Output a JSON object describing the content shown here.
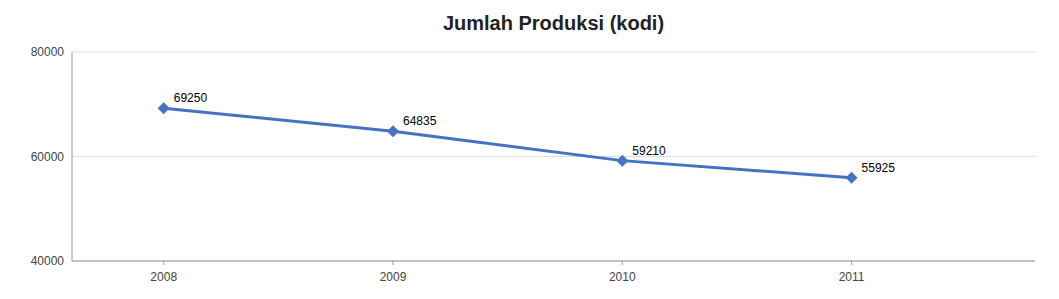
{
  "chart_data": {
    "type": "line",
    "title": "Jumlah Produksi (kodi)",
    "x": [
      2008,
      2009,
      2010,
      2011
    ],
    "values": [
      69250,
      64835,
      59210,
      55925
    ],
    "color": "#4472C4",
    "marker": "diamond",
    "xlim": [
      2007.6,
      2011.8
    ],
    "xticks": [
      2008,
      2009,
      2010,
      2011
    ],
    "ylim": [
      40000,
      80000
    ],
    "yticks": [
      40000,
      60000,
      80000
    ],
    "grid": true,
    "data_labels": true
  }
}
